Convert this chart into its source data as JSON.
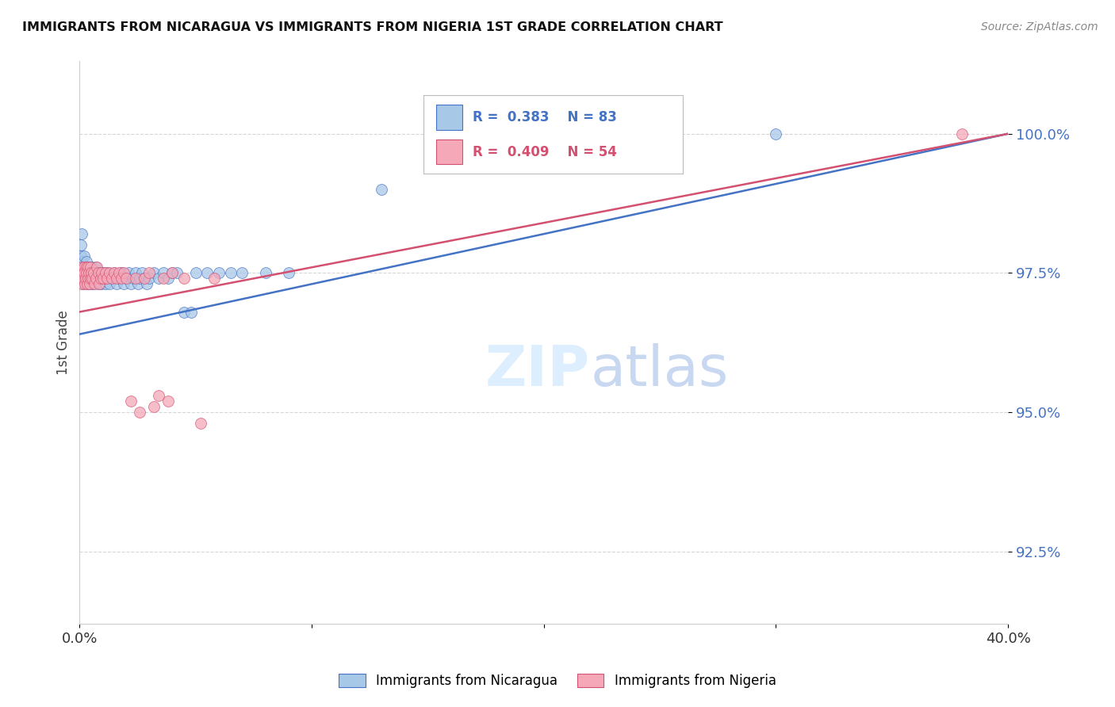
{
  "title": "IMMIGRANTS FROM NICARAGUA VS IMMIGRANTS FROM NIGERIA 1ST GRADE CORRELATION CHART",
  "source": "Source: ZipAtlas.com",
  "ylabel": "1st Grade",
  "ylabel_ticks": [
    "92.5%",
    "95.0%",
    "97.5%",
    "100.0%"
  ],
  "ylabel_values": [
    92.5,
    95.0,
    97.5,
    100.0
  ],
  "xlim": [
    0.0,
    40.0
  ],
  "ylim": [
    91.2,
    101.3
  ],
  "legend1_label": "Immigrants from Nicaragua",
  "legend2_label": "Immigrants from Nigeria",
  "color_nicaragua": "#a8c8e8",
  "color_nigeria": "#f4a8b8",
  "color_line_nicaragua": "#4472c4",
  "color_line_nigeria": "#d45070",
  "background_color": "#ffffff",
  "grid_color": "#cccccc",
  "nic_x": [
    0.05,
    0.07,
    0.08,
    0.09,
    0.1,
    0.1,
    0.11,
    0.12,
    0.13,
    0.14,
    0.15,
    0.16,
    0.18,
    0.2,
    0.2,
    0.22,
    0.25,
    0.28,
    0.3,
    0.3,
    0.32,
    0.35,
    0.38,
    0.4,
    0.42,
    0.45,
    0.48,
    0.5,
    0.52,
    0.55,
    0.58,
    0.6,
    0.62,
    0.65,
    0.68,
    0.7,
    0.75,
    0.8,
    0.85,
    0.9,
    0.95,
    1.0,
    1.05,
    1.1,
    1.15,
    1.2,
    1.3,
    1.4,
    1.5,
    1.6,
    1.7,
    1.8,
    1.9,
    2.0,
    2.1,
    2.2,
    2.3,
    2.4,
    2.5,
    2.6,
    2.7,
    2.8,
    2.9,
    3.0,
    3.2,
    3.4,
    3.6,
    3.8,
    4.0,
    4.2,
    4.5,
    4.8,
    5.0,
    5.5,
    6.0,
    6.5,
    7.0,
    8.0,
    9.0,
    13.0,
    19.5,
    24.5,
    30.0
  ],
  "nic_y": [
    97.8,
    98.0,
    97.5,
    97.6,
    97.7,
    98.2,
    97.4,
    97.5,
    97.6,
    97.3,
    97.5,
    97.4,
    97.6,
    97.5,
    97.8,
    97.4,
    97.6,
    97.5,
    97.4,
    97.7,
    97.5,
    97.3,
    97.6,
    97.5,
    97.4,
    97.6,
    97.5,
    97.3,
    97.4,
    97.6,
    97.5,
    97.4,
    97.3,
    97.5,
    97.4,
    97.6,
    97.5,
    97.3,
    97.4,
    97.5,
    97.3,
    97.4,
    97.5,
    97.3,
    97.4,
    97.5,
    97.3,
    97.4,
    97.5,
    97.3,
    97.4,
    97.5,
    97.3,
    97.4,
    97.5,
    97.3,
    97.4,
    97.5,
    97.3,
    97.4,
    97.5,
    97.4,
    97.3,
    97.4,
    97.5,
    97.4,
    97.5,
    97.4,
    97.5,
    97.5,
    96.8,
    96.8,
    97.5,
    97.5,
    97.5,
    97.5,
    97.5,
    97.5,
    97.5,
    99.0,
    100.0,
    100.0,
    100.0
  ],
  "nig_x": [
    0.05,
    0.07,
    0.08,
    0.1,
    0.12,
    0.15,
    0.18,
    0.2,
    0.22,
    0.25,
    0.28,
    0.3,
    0.32,
    0.35,
    0.38,
    0.4,
    0.42,
    0.45,
    0.48,
    0.5,
    0.55,
    0.6,
    0.65,
    0.7,
    0.75,
    0.8,
    0.85,
    0.9,
    0.95,
    1.0,
    1.1,
    1.2,
    1.3,
    1.4,
    1.5,
    1.6,
    1.7,
    1.8,
    1.9,
    2.0,
    2.2,
    2.4,
    2.6,
    2.8,
    3.0,
    3.2,
    3.4,
    3.6,
    3.8,
    4.0,
    4.5,
    5.2,
    5.8,
    38.0
  ],
  "nig_y": [
    97.4,
    97.5,
    97.6,
    97.3,
    97.5,
    97.4,
    97.6,
    97.5,
    97.3,
    97.4,
    97.6,
    97.5,
    97.3,
    97.4,
    97.6,
    97.5,
    97.3,
    97.4,
    97.6,
    97.5,
    97.4,
    97.5,
    97.3,
    97.4,
    97.6,
    97.5,
    97.3,
    97.4,
    97.5,
    97.4,
    97.5,
    97.4,
    97.5,
    97.4,
    97.5,
    97.4,
    97.5,
    97.4,
    97.5,
    97.4,
    95.2,
    97.4,
    95.0,
    97.4,
    97.5,
    95.1,
    95.3,
    97.4,
    95.2,
    97.5,
    97.4,
    94.8,
    97.4,
    100.0
  ],
  "line_nic_x0": 0.0,
  "line_nic_x1": 40.0,
  "line_nic_y0": 96.4,
  "line_nic_y1": 100.0,
  "line_nig_x0": 0.0,
  "line_nig_x1": 40.0,
  "line_nig_y0": 96.8,
  "line_nig_y1": 100.0
}
